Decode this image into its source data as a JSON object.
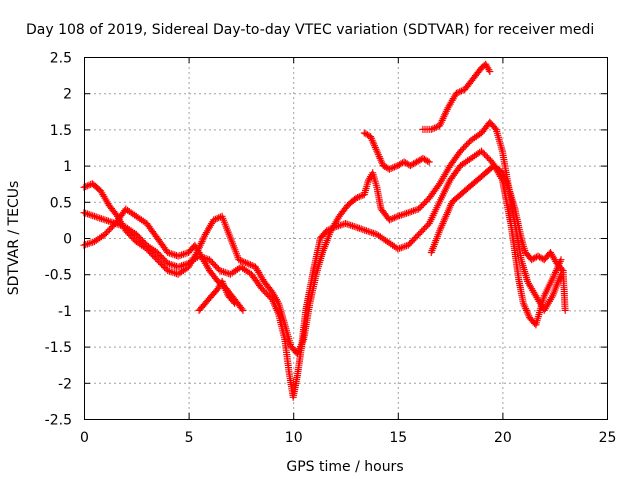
{
  "chart_data": {
    "type": "scatter",
    "title": "Day 108 of 2019, Sidereal Day-to-day VTEC variation (SDTVAR) for receiver medi",
    "xlabel": "GPS time / hours",
    "ylabel": "SDTVAR / TECUs",
    "xlim": [
      0,
      25
    ],
    "ylim": [
      -2.5,
      2.5
    ],
    "xticks": [
      "0",
      "5",
      "10",
      "15",
      "20",
      "25"
    ],
    "yticks": [
      "2.5",
      "2",
      "1.5",
      "1",
      "0.5",
      "0",
      "-0.5",
      "-1",
      "-1.5",
      "-2",
      "-2.5"
    ],
    "grid": true,
    "marker": "plus",
    "color": "#ff0000",
    "series": [
      {
        "points": [
          [
            0.0,
            0.35
          ],
          [
            0.5,
            0.3
          ],
          [
            1.0,
            0.25
          ],
          [
            1.5,
            0.2
          ],
          [
            2.0,
            0.15
          ],
          [
            2.5,
            0.05
          ],
          [
            3.0,
            -0.1
          ],
          [
            3.5,
            -0.2
          ],
          [
            4.0,
            -0.35
          ],
          [
            4.5,
            -0.4
          ],
          [
            5.0,
            -0.35
          ],
          [
            5.5,
            -0.25
          ],
          [
            6.0,
            -0.3
          ],
          [
            6.5,
            -0.45
          ],
          [
            7.0,
            -0.5
          ],
          [
            7.5,
            -0.4
          ],
          [
            8.0,
            -0.5
          ],
          [
            8.5,
            -0.7
          ],
          [
            9.0,
            -0.85
          ],
          [
            9.3,
            -1.05
          ],
          [
            9.6,
            -1.4
          ],
          [
            9.8,
            -1.85
          ],
          [
            10.0,
            -2.2
          ],
          [
            10.2,
            -1.9
          ],
          [
            10.4,
            -1.5
          ],
          [
            10.6,
            -1.0
          ],
          [
            10.8,
            -0.7
          ],
          [
            11.0,
            -0.4
          ],
          [
            11.3,
            0.0
          ],
          [
            11.6,
            0.1
          ],
          [
            12.0,
            0.15
          ],
          [
            12.5,
            0.2
          ],
          [
            13.0,
            0.15
          ],
          [
            13.5,
            0.1
          ],
          [
            14.0,
            0.05
          ],
          [
            14.5,
            -0.05
          ],
          [
            15.0,
            -0.15
          ],
          [
            15.5,
            -0.1
          ],
          [
            16.0,
            0.05
          ],
          [
            16.5,
            0.2
          ],
          [
            17.0,
            0.5
          ],
          [
            17.5,
            0.8
          ],
          [
            18.0,
            1.0
          ],
          [
            18.5,
            1.1
          ],
          [
            19.0,
            1.2
          ],
          [
            19.5,
            1.05
          ],
          [
            20.0,
            0.8
          ],
          [
            20.2,
            0.5
          ],
          [
            20.4,
            0.2
          ],
          [
            20.6,
            -0.2
          ],
          [
            20.8,
            -0.6
          ],
          [
            21.0,
            -0.9
          ],
          [
            21.3,
            -1.1
          ],
          [
            21.6,
            -1.2
          ],
          [
            22.0,
            -0.8
          ],
          [
            22.5,
            -0.5
          ],
          [
            22.8,
            -0.3
          ]
        ]
      },
      {
        "points": [
          [
            0.0,
            0.7
          ],
          [
            0.4,
            0.75
          ],
          [
            0.8,
            0.65
          ],
          [
            1.2,
            0.45
          ],
          [
            1.6,
            0.3
          ],
          [
            2.0,
            0.1
          ],
          [
            2.5,
            -0.05
          ],
          [
            3.0,
            -0.15
          ],
          [
            3.5,
            -0.3
          ],
          [
            4.0,
            -0.45
          ],
          [
            4.5,
            -0.5
          ],
          [
            5.0,
            -0.4
          ],
          [
            5.4,
            -0.2
          ],
          [
            5.8,
            0.05
          ],
          [
            6.2,
            0.25
          ],
          [
            6.6,
            0.3
          ],
          [
            7.0,
            0.0
          ],
          [
            7.4,
            -0.3
          ],
          [
            7.8,
            -0.35
          ],
          [
            8.2,
            -0.4
          ],
          [
            8.6,
            -0.6
          ],
          [
            9.0,
            -0.75
          ],
          [
            9.3,
            -0.9
          ],
          [
            9.6,
            -1.2
          ],
          [
            9.9,
            -1.5
          ],
          [
            10.2,
            -1.6
          ],
          [
            10.5,
            -1.4
          ],
          [
            10.8,
            -0.9
          ],
          [
            11.1,
            -0.5
          ],
          [
            11.4,
            -0.2
          ],
          [
            11.8,
            0.1
          ],
          [
            12.2,
            0.3
          ],
          [
            12.6,
            0.45
          ],
          [
            13.0,
            0.55
          ],
          [
            13.4,
            0.6
          ],
          [
            13.6,
            0.8
          ],
          [
            13.8,
            0.9
          ],
          [
            14.0,
            0.7
          ],
          [
            14.2,
            0.4
          ],
          [
            14.6,
            0.25
          ],
          [
            15.0,
            0.3
          ],
          [
            15.5,
            0.35
          ],
          [
            16.0,
            0.4
          ],
          [
            16.5,
            0.55
          ],
          [
            17.0,
            0.75
          ],
          [
            17.5,
            1.0
          ],
          [
            18.0,
            1.2
          ],
          [
            18.5,
            1.35
          ],
          [
            19.0,
            1.45
          ],
          [
            19.4,
            1.6
          ],
          [
            19.7,
            1.5
          ],
          [
            20.0,
            1.2
          ],
          [
            20.3,
            0.7
          ],
          [
            20.6,
            0.2
          ],
          [
            20.9,
            -0.3
          ],
          [
            21.2,
            -0.6
          ],
          [
            21.6,
            -0.8
          ],
          [
            22.0,
            -1.0
          ],
          [
            22.4,
            -0.8
          ],
          [
            22.8,
            -0.5
          ]
        ]
      },
      {
        "points": [
          [
            0.0,
            -0.1
          ],
          [
            0.5,
            -0.05
          ],
          [
            1.0,
            0.05
          ],
          [
            1.5,
            0.2
          ],
          [
            2.0,
            0.4
          ],
          [
            2.5,
            0.3
          ],
          [
            3.0,
            0.2
          ],
          [
            3.5,
            0.0
          ],
          [
            4.0,
            -0.2
          ],
          [
            4.5,
            -0.25
          ],
          [
            5.0,
            -0.2
          ],
          [
            5.3,
            -0.1
          ],
          [
            5.6,
            -0.25
          ],
          [
            6.0,
            -0.45
          ],
          [
            6.4,
            -0.6
          ],
          [
            6.8,
            -0.7
          ],
          [
            7.2,
            -0.85
          ],
          [
            7.6,
            -1.0
          ]
        ]
      },
      {
        "points": [
          [
            5.5,
            -1.0
          ],
          [
            5.8,
            -0.9
          ],
          [
            6.1,
            -0.8
          ],
          [
            6.4,
            -0.7
          ],
          [
            6.6,
            -0.6
          ],
          [
            6.9,
            -0.8
          ],
          [
            7.2,
            -0.9
          ]
        ]
      },
      {
        "points": [
          [
            13.4,
            1.45
          ],
          [
            13.7,
            1.4
          ],
          [
            14.0,
            1.2
          ],
          [
            14.3,
            1.0
          ],
          [
            14.6,
            0.95
          ],
          [
            15.0,
            1.0
          ],
          [
            15.3,
            1.05
          ],
          [
            15.6,
            1.0
          ],
          [
            15.9,
            1.05
          ],
          [
            16.2,
            1.1
          ],
          [
            16.5,
            1.05
          ]
        ]
      },
      {
        "points": [
          [
            16.2,
            1.5
          ],
          [
            16.6,
            1.5
          ],
          [
            17.0,
            1.55
          ],
          [
            17.4,
            1.8
          ],
          [
            17.8,
            2.0
          ],
          [
            18.2,
            2.05
          ],
          [
            18.6,
            2.2
          ],
          [
            19.0,
            2.35
          ],
          [
            19.2,
            2.4
          ],
          [
            19.4,
            2.3
          ]
        ]
      },
      {
        "points": [
          [
            16.6,
            -0.2
          ],
          [
            17.0,
            0.1
          ],
          [
            17.3,
            0.3
          ],
          [
            17.6,
            0.5
          ],
          [
            18.0,
            0.6
          ],
          [
            18.4,
            0.7
          ],
          [
            18.8,
            0.8
          ],
          [
            19.2,
            0.9
          ],
          [
            19.6,
            1.0
          ],
          [
            20.0,
            0.9
          ],
          [
            20.3,
            0.7
          ],
          [
            20.6,
            0.4
          ],
          [
            20.9,
            0.0
          ],
          [
            21.1,
            -0.2
          ],
          [
            21.4,
            -0.3
          ],
          [
            21.7,
            -0.25
          ],
          [
            22.0,
            -0.3
          ],
          [
            22.3,
            -0.2
          ],
          [
            22.6,
            -0.35
          ],
          [
            22.9,
            -0.45
          ],
          [
            23.0,
            -1.0
          ]
        ]
      }
    ]
  }
}
